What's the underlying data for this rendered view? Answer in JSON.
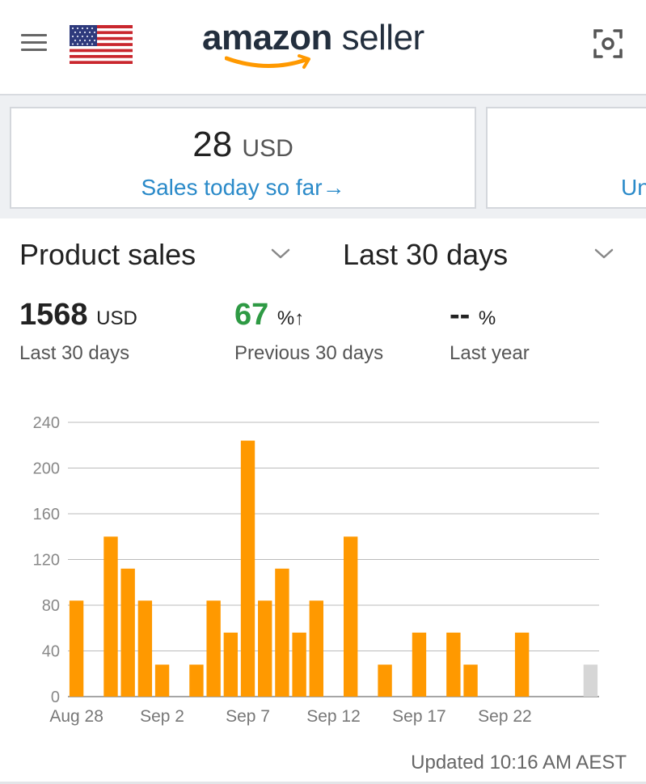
{
  "header": {
    "logo_bold": "amazon",
    "logo_light": "seller",
    "menu_icon": "hamburger-menu-icon",
    "flag_icon": "us-flag-icon",
    "scan_icon": "scan-camera-icon"
  },
  "cards": [
    {
      "amount": "28",
      "unit": "USD",
      "link": "Sales today so far",
      "arrow": "→"
    },
    {
      "link": "Un"
    }
  ],
  "selectors": {
    "metric": "Product sales",
    "period": "Last 30 days"
  },
  "metrics": [
    {
      "value": "1568",
      "unit": "USD",
      "label": "Last 30 days"
    },
    {
      "value": "67",
      "unit": "%",
      "arrow": "↑",
      "label": "Previous 30 days",
      "color": "#2e9a44"
    },
    {
      "value": "--",
      "unit": "%",
      "label": "Last year"
    }
  ],
  "footer": {
    "updated": "Updated 10:16 AM AEST"
  },
  "colors": {
    "bar": "#ff9900",
    "bar_today": "#d6d6d6",
    "link": "#2a8ac9",
    "positive": "#2e9a44"
  },
  "chart_data": {
    "type": "bar",
    "title": "",
    "xlabel": "",
    "ylabel": "",
    "ylim": [
      0,
      240
    ],
    "yticks": [
      0,
      40,
      80,
      120,
      160,
      200,
      240
    ],
    "xtick_labels": [
      "Aug 28",
      "Sep 2",
      "Sep 7",
      "Sep 12",
      "Sep 17",
      "Sep 22"
    ],
    "xtick_indices": [
      0,
      5,
      10,
      15,
      20,
      25
    ],
    "categories": [
      "Aug 28",
      "Aug 29",
      "Aug 30",
      "Aug 31",
      "Sep 1",
      "Sep 2",
      "Sep 3",
      "Sep 4",
      "Sep 5",
      "Sep 6",
      "Sep 7",
      "Sep 8",
      "Sep 9",
      "Sep 10",
      "Sep 11",
      "Sep 12",
      "Sep 13",
      "Sep 14",
      "Sep 15",
      "Sep 16",
      "Sep 17",
      "Sep 18",
      "Sep 19",
      "Sep 20",
      "Sep 21",
      "Sep 22",
      "Sep 23",
      "Sep 24",
      "Sep 25",
      "Sep 26",
      "Sep 27"
    ],
    "values": [
      84,
      0,
      140,
      112,
      84,
      28,
      0,
      28,
      84,
      56,
      224,
      84,
      112,
      56,
      84,
      0,
      140,
      0,
      28,
      0,
      56,
      0,
      56,
      28,
      0,
      0,
      56,
      0,
      0,
      0,
      28
    ],
    "highlight_last": true,
    "grid": true
  }
}
